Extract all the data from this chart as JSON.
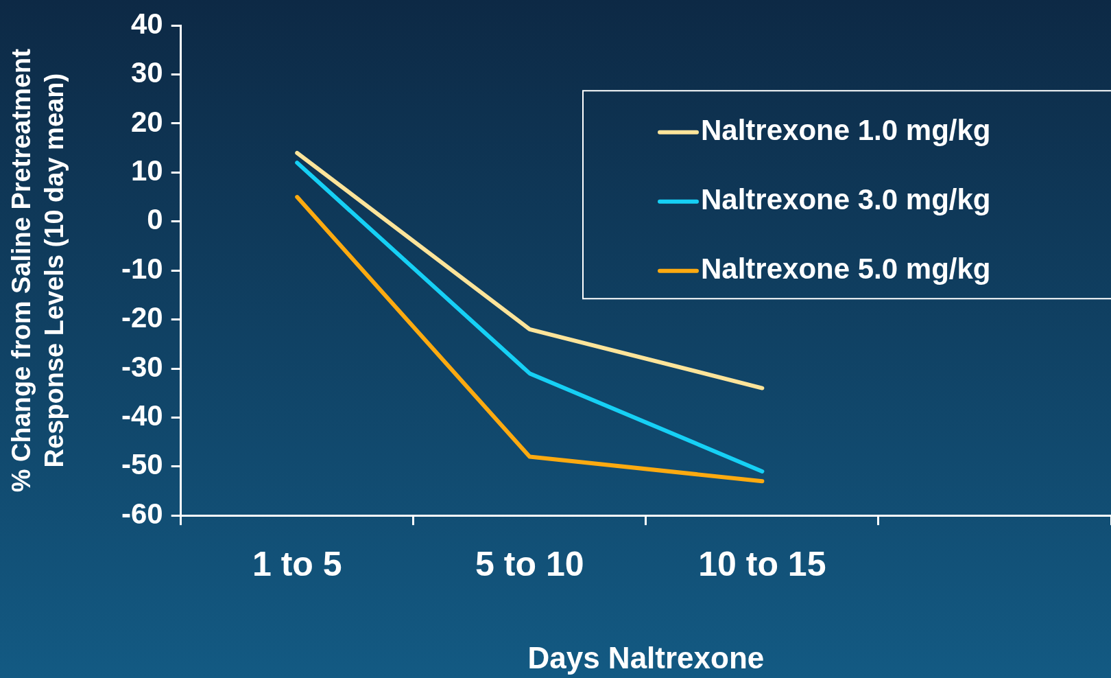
{
  "chart_data": {
    "type": "line",
    "xlabel": "Days Naltrexone",
    "ylabel": "% Change from Saline Pretreatment\nResponse Levels (10 day mean)",
    "categories": [
      "1 to 5",
      "5 to 10",
      "10 to 15",
      null
    ],
    "series": [
      {
        "name": "Naltrexone 1.0 mg/kg",
        "color": "#fde49a",
        "values": [
          14,
          -22,
          -34,
          null
        ]
      },
      {
        "name": "Naltrexone 3.0 mg/kg",
        "color": "#16d0f5",
        "values": [
          12,
          -31,
          -51,
          null
        ]
      },
      {
        "name": "Naltrexone 5.0 mg/kg",
        "color": "#fdaa10",
        "values": [
          5,
          -48,
          -53,
          null
        ]
      }
    ],
    "ylim": [
      -60,
      40
    ],
    "yticks": [
      -60,
      -50,
      -40,
      -30,
      -20,
      -10,
      0,
      10,
      20,
      30,
      40
    ],
    "grid": false,
    "legend": "top right",
    "marker": "none",
    "line_style": "solid"
  }
}
